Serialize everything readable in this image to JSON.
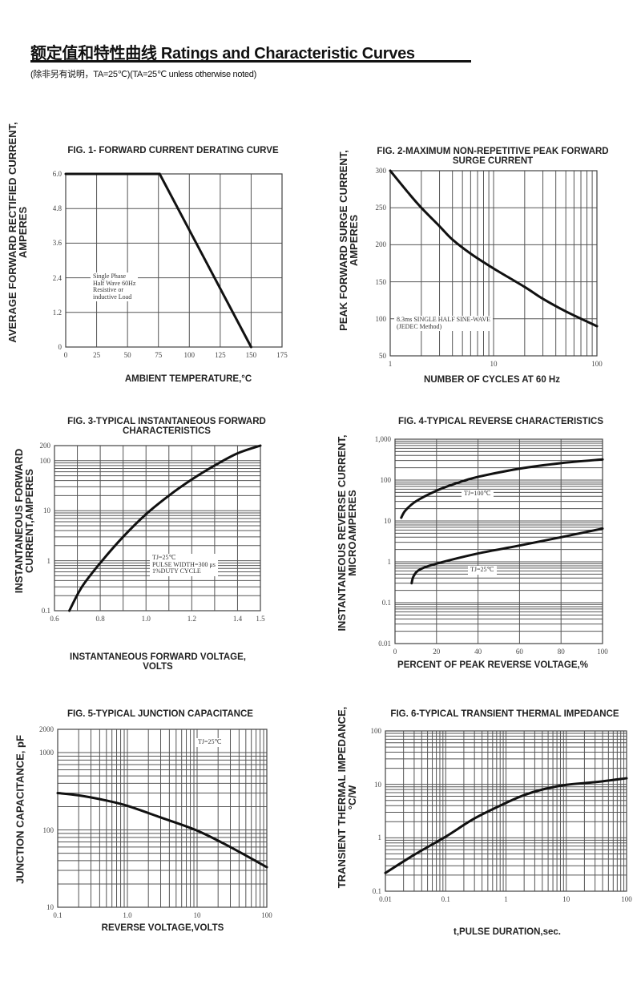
{
  "header": {
    "title": "额定值和特性曲线 Ratings and Characteristic Curves",
    "subtitle": "(除非另有说明，TA=25℃)(TA=25℃  unless otherwise noted)"
  },
  "chart_data": [
    {
      "type": "line",
      "title": [
        "FIG. 1- FORWARD CURRENT DERATING CURVE"
      ],
      "ylabel": [
        "AVERAGE FORWARD RECTIFIED CURRENT,",
        "AMPERES"
      ],
      "xlabel": [
        "AMBIENT TEMPERATURE,°C"
      ],
      "x_scale": "linear",
      "y_scale": "linear",
      "xlim": [
        0,
        175
      ],
      "ylim": [
        0,
        6.0
      ],
      "xticks": [
        0,
        25,
        50,
        75,
        100,
        125,
        150,
        175
      ],
      "xtick_labels": [
        "0",
        "25",
        "50",
        "75",
        "100",
        "125",
        "150",
        "175"
      ],
      "yticks": [
        0,
        1.2,
        2.4,
        3.6,
        4.8,
        6.0
      ],
      "ytick_labels": [
        "0",
        "1.2",
        "2.4",
        "3.6",
        "4.8",
        "6.0"
      ],
      "grid": true,
      "series": [
        {
          "points": [
            [
              0,
              6.0
            ],
            [
              76,
              6.0
            ],
            [
              150,
              0
            ]
          ]
        }
      ],
      "annotations": [
        {
          "lines": [
            "Single Phase",
            "Half Wave 60Hz",
            "Resistive or",
            "inductive Load"
          ]
        }
      ]
    },
    {
      "type": "line",
      "title": [
        "FIG. 2-MAXIMUM NON-REPETITIVE PEAK FORWARD",
        "SURGE CURRENT"
      ],
      "ylabel": [
        "PEAK  FORWARD SURGE CURRENT,",
        "AMPERES"
      ],
      "xlabel": [
        "NUMBER OF CYCLES AT 60 Hz"
      ],
      "x_scale": "log",
      "y_scale": "linear",
      "xlim": [
        1,
        100
      ],
      "ylim": [
        50,
        300
      ],
      "xticks": [
        1,
        10,
        100
      ],
      "xtick_labels": [
        "1",
        "10",
        "100"
      ],
      "yticks": [
        50,
        100,
        150,
        200,
        250,
        300
      ],
      "ytick_labels": [
        "50",
        "100",
        "150",
        "200",
        "250",
        "300"
      ],
      "grid": true,
      "series": [
        {
          "points": [
            [
              1,
              300
            ],
            [
              1.5,
              270
            ],
            [
              2,
              250
            ],
            [
              3,
              225
            ],
            [
              4,
              207
            ],
            [
              6,
              188
            ],
            [
              10,
              168
            ],
            [
              20,
              143
            ],
            [
              30,
              127
            ],
            [
              50,
              110
            ],
            [
              100,
              90
            ]
          ]
        }
      ],
      "annotations": [
        {
          "lines": [
            "8.3ms SINGLE HALF SINE-WAVE",
            "(JEDEC Method)"
          ]
        }
      ]
    },
    {
      "type": "line",
      "title": [
        "FIG. 3-TYPICAL INSTANTANEOUS FORWARD",
        "CHARACTERISTICS"
      ],
      "ylabel": [
        "INSTANTANEOUS FORWARD",
        "CURRENT,AMPERES"
      ],
      "xlabel": [
        "INSTANTANEOUS FORWARD VOLTAGE,",
        "VOLTS"
      ],
      "x_scale": "linear",
      "y_scale": "log",
      "xlim": [
        0.6,
        1.5
      ],
      "ylim": [
        0.1,
        200
      ],
      "xticks": [
        0.6,
        0.8,
        1.0,
        1.2,
        1.4,
        1.5
      ],
      "xtick_labels": [
        "0.6",
        "0.8",
        "1.0",
        "1.2",
        "1.4",
        "1.5"
      ],
      "yticks": [
        0.1,
        1,
        10,
        100,
        200
      ],
      "ytick_labels": [
        "0.1",
        "1",
        "10",
        "100",
        "200"
      ],
      "grid": true,
      "series": [
        {
          "points": [
            [
              0.665,
              0.1
            ],
            [
              0.72,
              0.3
            ],
            [
              0.8,
              0.9
            ],
            [
              0.9,
              3
            ],
            [
              1.0,
              8.5
            ],
            [
              1.1,
              20
            ],
            [
              1.2,
              42
            ],
            [
              1.3,
              80
            ],
            [
              1.4,
              140
            ],
            [
              1.5,
              200
            ]
          ]
        }
      ],
      "annotations": [
        {
          "lines": [
            "TJ=25℃",
            "PULSE WIDTH=300 μs",
            "1%DUTY CYCLE"
          ]
        }
      ]
    },
    {
      "type": "line",
      "title": [
        "FIG. 4-TYPICAL REVERSE CHARACTERISTICS"
      ],
      "ylabel": [
        "INSTANTANEOUS REVERSE CURRENT,",
        "MICROAMPERES"
      ],
      "xlabel": [
        "PERCENT OF PEAK REVERSE VOLTAGE,%"
      ],
      "x_scale": "linear",
      "y_scale": "log",
      "xlim": [
        0,
        100
      ],
      "ylim": [
        0.01,
        1000
      ],
      "xticks": [
        0,
        20,
        40,
        60,
        80,
        100
      ],
      "xtick_labels": [
        "0",
        "20",
        "40",
        "60",
        "80",
        "100"
      ],
      "yticks": [
        0.01,
        0.1,
        1,
        10,
        100,
        1000
      ],
      "ytick_labels": [
        "0.01",
        "0.1",
        "1",
        "10",
        "100",
        "1,000"
      ],
      "grid": true,
      "series": [
        {
          "name": "TJ=100℃",
          "points": [
            [
              3,
              12
            ],
            [
              5,
              18
            ],
            [
              10,
              30
            ],
            [
              20,
              55
            ],
            [
              30,
              85
            ],
            [
              40,
              120
            ],
            [
              60,
              190
            ],
            [
              80,
              260
            ],
            [
              100,
              320
            ]
          ]
        },
        {
          "name": "TJ=25℃",
          "points": [
            [
              8,
              0.3
            ],
            [
              9,
              0.45
            ],
            [
              12,
              0.65
            ],
            [
              20,
              0.9
            ],
            [
              40,
              1.6
            ],
            [
              60,
              2.5
            ],
            [
              80,
              4
            ],
            [
              100,
              6.5
            ]
          ]
        }
      ],
      "annotations": [
        {
          "lines": [
            "TJ=100℃"
          ]
        },
        {
          "lines": [
            "TJ=25℃"
          ]
        }
      ]
    },
    {
      "type": "line",
      "title": [
        "FIG. 5-TYPICAL JUNCTION CAPACITANCE"
      ],
      "ylabel": [
        "JUNCTION CAPACITANCE, pF"
      ],
      "xlabel": [
        "REVERSE VOLTAGE,VOLTS"
      ],
      "x_scale": "log",
      "y_scale": "log",
      "xlim": [
        0.1,
        100
      ],
      "ylim": [
        10,
        2000
      ],
      "xticks": [
        0.1,
        1,
        10,
        100
      ],
      "xtick_labels": [
        "0.1",
        "1.0",
        "10",
        "100"
      ],
      "yticks": [
        10,
        100,
        1000,
        2000
      ],
      "ytick_labels": [
        "10",
        "100",
        "1000",
        "2000"
      ],
      "grid": true,
      "series": [
        {
          "points": [
            [
              0.1,
              300
            ],
            [
              0.2,
              280
            ],
            [
              0.5,
              240
            ],
            [
              1,
              205
            ],
            [
              3,
              145
            ],
            [
              10,
              98
            ],
            [
              30,
              60
            ],
            [
              100,
              33
            ]
          ]
        }
      ],
      "annotations": [
        {
          "lines": [
            "TJ=25℃"
          ]
        }
      ]
    },
    {
      "type": "line",
      "title": [
        "FIG. 6-TYPICAL TRANSIENT THERMAL IMPEDANCE"
      ],
      "ylabel": [
        "TRANSIENT THERMAL IMPEDANCE,",
        "°C/W"
      ],
      "xlabel": [
        "t,PULSE DURATION,sec."
      ],
      "x_scale": "log",
      "y_scale": "log",
      "xlim": [
        0.01,
        100
      ],
      "ylim": [
        0.1,
        100
      ],
      "xticks": [
        0.01,
        0.1,
        1,
        10,
        100
      ],
      "xtick_labels": [
        "0.01",
        "0.1",
        "1",
        "10",
        "100"
      ],
      "yticks": [
        0.1,
        1,
        10,
        100
      ],
      "ytick_labels": [
        "0.1",
        "1",
        "10",
        "100"
      ],
      "grid": true,
      "series": [
        {
          "points": [
            [
              0.01,
              0.22
            ],
            [
              0.03,
              0.48
            ],
            [
              0.1,
              1.05
            ],
            [
              0.3,
              2.3
            ],
            [
              1,
              4.5
            ],
            [
              2,
              6.3
            ],
            [
              4,
              8
            ],
            [
              10,
              9.8
            ],
            [
              30,
              11
            ],
            [
              100,
              13
            ]
          ]
        }
      ],
      "annotations": []
    }
  ]
}
